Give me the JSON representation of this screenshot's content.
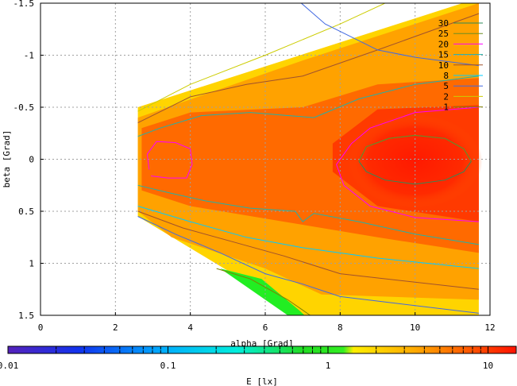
{
  "chart_data": {
    "type": "heatmap",
    "title": "",
    "xlabel": "alpha [Grad]",
    "ylabel": "beta [Grad]",
    "colorbar_label": "E [lx]",
    "xlim": [
      0,
      12
    ],
    "ylim": [
      -1.5,
      1.5
    ],
    "y_inverted": true,
    "grid": true,
    "x_ticks": [
      "0",
      "2",
      "4",
      "6",
      "8",
      "10",
      "12"
    ],
    "x_tick_values": [
      0,
      2,
      4,
      6,
      8,
      10,
      12
    ],
    "y_ticks": [
      "-1.5",
      "-1",
      "-0.5",
      "0",
      "0.5",
      "1",
      "1.5"
    ],
    "y_tick_values": [
      -1.5,
      -1,
      -0.5,
      0,
      0.5,
      1,
      1.5
    ],
    "colorbar_scale": "log",
    "colorbar_range": [
      0.01,
      15
    ],
    "colorbar_ticks": [
      "0.01",
      "0.1",
      "1",
      "10"
    ],
    "colorbar_tick_values": [
      0.01,
      0.1,
      1,
      10
    ],
    "legend_placement": "top-right",
    "contour_levels": [
      {
        "label": "30",
        "color": "#2e8b57"
      },
      {
        "label": "25",
        "color": "#6b8e23"
      },
      {
        "label": "20",
        "color": "#ff00ff"
      },
      {
        "label": "15",
        "color": "#20b2aa"
      },
      {
        "label": "10",
        "color": "#a0522d"
      },
      {
        "label": "8",
        "color": "#00ccff"
      },
      {
        "label": "5",
        "color": "#4169e1"
      },
      {
        "label": "2",
        "color": "#cccc00"
      },
      {
        "label": "1",
        "color": "#808000"
      }
    ],
    "colors": {
      "high": "#ff1a00",
      "mid": "#ff5a00",
      "low": "#ffb000",
      "edge": "#ffe000",
      "green": "#22ee22"
    }
  }
}
